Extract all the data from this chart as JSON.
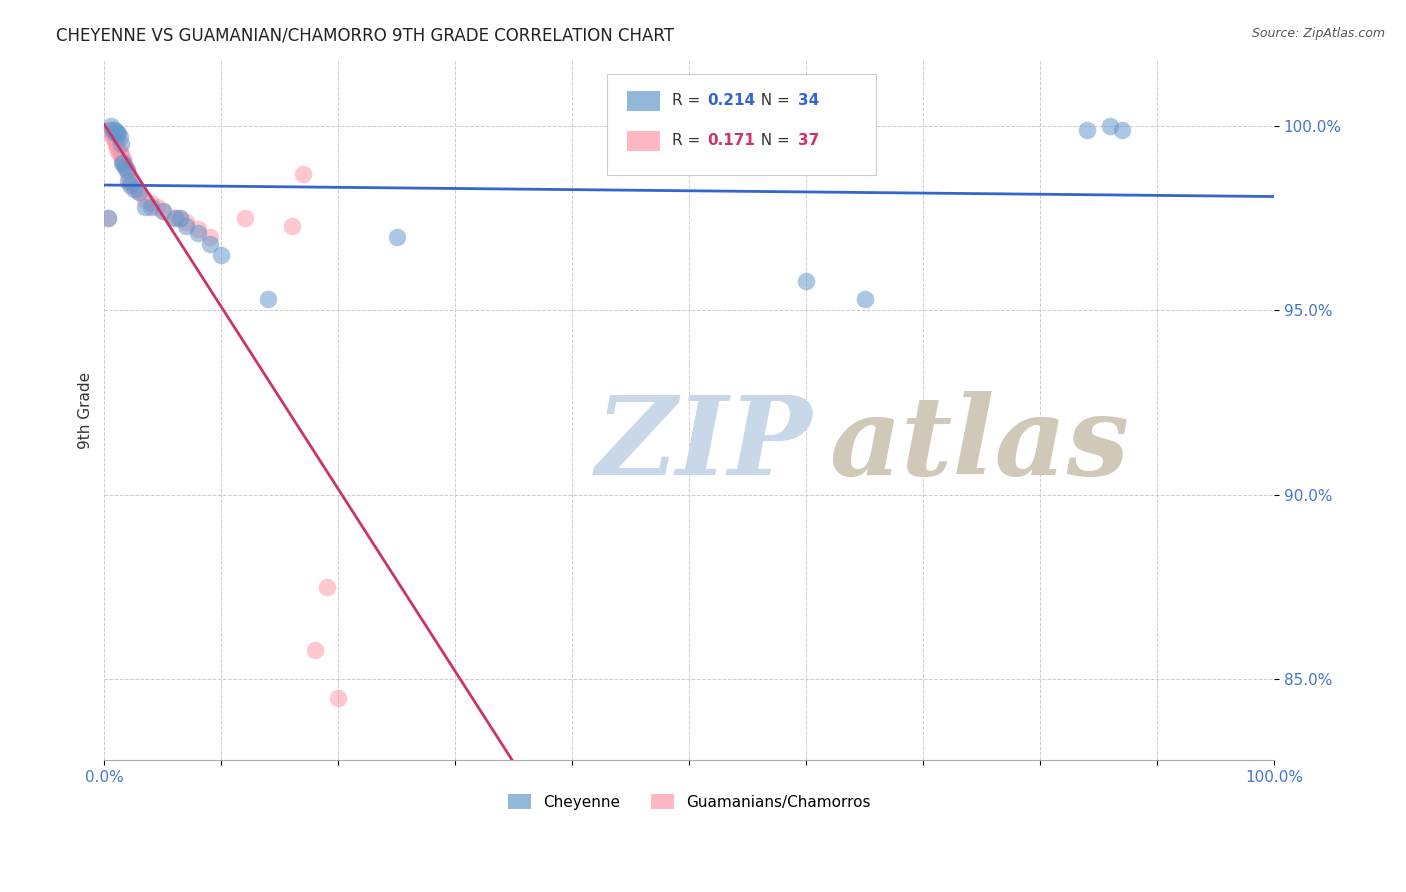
{
  "title": "CHEYENNE VS GUAMANIAN/CHAMORRO 9TH GRADE CORRELATION CHART",
  "source": "Source: ZipAtlas.com",
  "ylabel": "9th Grade",
  "xlim": [
    0.0,
    1.0
  ],
  "ylim": [
    0.828,
    1.018
  ],
  "yticks": [
    0.85,
    0.9,
    0.95,
    1.0
  ],
  "ytick_labels": [
    "85.0%",
    "90.0%",
    "95.0%",
    "100.0%"
  ],
  "xticks": [
    0.0,
    0.1,
    0.2,
    0.3,
    0.4,
    0.5,
    0.6,
    0.7,
    0.8,
    0.9,
    1.0
  ],
  "xtick_labels": [
    "0.0%",
    "",
    "",
    "",
    "",
    "",
    "",
    "",
    "",
    "",
    "100.0%"
  ],
  "blue_R": 0.214,
  "blue_N": 34,
  "pink_R": 0.171,
  "pink_N": 37,
  "blue_label": "Cheyenne",
  "pink_label": "Guamanians/Chamorros",
  "blue_color": "#6699CC",
  "pink_color": "#FF99AA",
  "blue_line_color": "#3366CC",
  "pink_line_color": "#CC3366",
  "watermark_zip": "ZIP",
  "watermark_atlas": "atlas",
  "watermark_color_zip": "#C8D8E8",
  "watermark_color_atlas": "#D0C8B8",
  "background_color": "#FFFFFF",
  "blue_x": [
    0.003,
    0.006,
    0.007,
    0.009,
    0.009,
    0.01,
    0.011,
    0.012,
    0.013,
    0.014,
    0.015,
    0.016,
    0.018,
    0.019,
    0.02,
    0.022,
    0.025,
    0.03,
    0.035,
    0.04,
    0.05,
    0.06,
    0.065,
    0.07,
    0.08,
    0.09,
    0.1,
    0.14,
    0.25,
    0.6,
    0.65,
    0.84,
    0.86,
    0.87
  ],
  "blue_y": [
    0.975,
    1.0,
    0.999,
    0.999,
    0.998,
    0.998,
    0.998,
    0.998,
    0.997,
    0.995,
    0.99,
    0.99,
    0.989,
    0.988,
    0.985,
    0.984,
    0.983,
    0.982,
    0.978,
    0.978,
    0.977,
    0.975,
    0.975,
    0.973,
    0.971,
    0.968,
    0.965,
    0.953,
    0.97,
    0.958,
    0.953,
    0.999,
    1.0,
    0.999
  ],
  "pink_x": [
    0.003,
    0.004,
    0.005,
    0.006,
    0.007,
    0.008,
    0.009,
    0.01,
    0.011,
    0.012,
    0.013,
    0.014,
    0.015,
    0.016,
    0.017,
    0.018,
    0.019,
    0.02,
    0.022,
    0.025,
    0.028,
    0.03,
    0.035,
    0.04,
    0.045,
    0.05,
    0.06,
    0.065,
    0.07,
    0.08,
    0.09,
    0.12,
    0.16,
    0.17,
    0.18,
    0.19,
    0.2
  ],
  "pink_y": [
    0.975,
    0.999,
    0.999,
    0.998,
    0.997,
    0.997,
    0.996,
    0.995,
    0.994,
    0.993,
    0.993,
    0.992,
    0.991,
    0.991,
    0.99,
    0.989,
    0.988,
    0.987,
    0.985,
    0.984,
    0.983,
    0.982,
    0.98,
    0.979,
    0.978,
    0.977,
    0.975,
    0.975,
    0.974,
    0.972,
    0.97,
    0.975,
    0.973,
    0.987,
    0.858,
    0.875,
    0.845
  ]
}
